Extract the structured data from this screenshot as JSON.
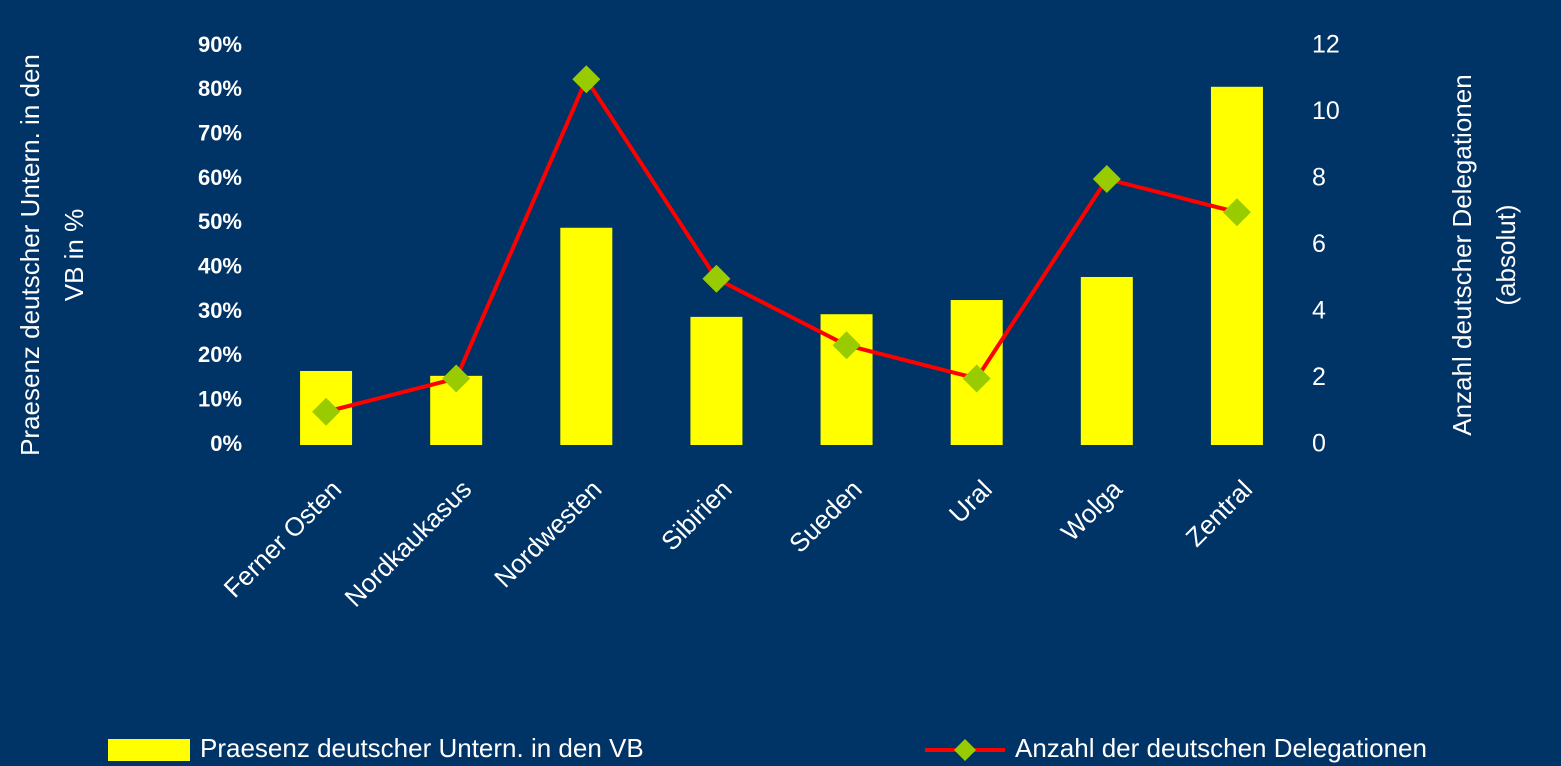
{
  "chart_data": {
    "type": "bar_line",
    "categories": [
      "Ferner Osten",
      "Nordkaukasus",
      "Nordwesten",
      "Sibirien",
      "Sueden",
      "Ural",
      "Wolga",
      "Zentral"
    ],
    "series": [
      {
        "name": "Praesenz deutscher Untern. in den VB",
        "type": "bar",
        "color": "#ffff00",
        "values": [
          16.7,
          15.6,
          49,
          28.9,
          29.5,
          32.7,
          37.9,
          80.8
        ]
      },
      {
        "name": "Anzahl der deutschen Delegationen",
        "type": "line",
        "axis": "y2",
        "color": "#ff0000",
        "marker_color": "#99cc00",
        "values": [
          1,
          2,
          11,
          5,
          3,
          2,
          8,
          7
        ]
      }
    ],
    "ylabel": "Praesenz deutscher Untern. in den VB in %",
    "y2label": "Anzahl deutscher Delegationen (absolut)",
    "ylim": [
      0,
      90
    ],
    "yticks": [
      {
        "value": 0,
        "label": "0%"
      },
      {
        "value": 10,
        "label": "10%"
      },
      {
        "value": 20,
        "label": "20%"
      },
      {
        "value": 30,
        "label": "30%"
      },
      {
        "value": 40,
        "label": "40%"
      },
      {
        "value": 50,
        "label": "50%"
      },
      {
        "value": 60,
        "label": "60%"
      },
      {
        "value": 70,
        "label": "70%"
      },
      {
        "value": 80,
        "label": "80%"
      },
      {
        "value": 90,
        "label": "90%"
      }
    ],
    "y2lim": [
      0,
      12
    ],
    "y2ticks": [
      0,
      2,
      4,
      6,
      8,
      10,
      12
    ],
    "grid": false,
    "legend": "bottom"
  }
}
